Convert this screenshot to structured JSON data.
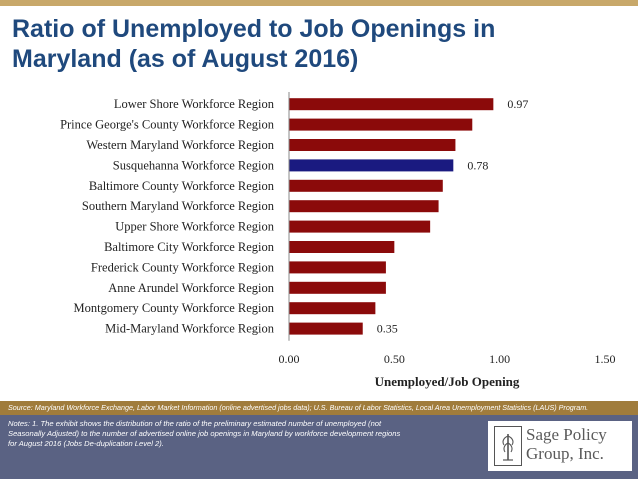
{
  "title": "Ratio of Unemployed to Job Openings in Maryland (as of August 2016)",
  "colors": {
    "bar_default": "#8b0a0a",
    "bar_highlight": "#1a1a80",
    "source_bar": "#a07c3c",
    "footer": "#5a6283",
    "title": "#1f497d"
  },
  "chart_data": {
    "type": "bar",
    "orientation": "horizontal",
    "categories": [
      "Lower Shore Workforce Region",
      "Prince George's County Workforce Region",
      "Western Maryland Workforce Region",
      "Susquehanna Workforce Region",
      "Baltimore County Workforce Region",
      "Southern Maryland Workforce Region",
      "Upper Shore Workforce Region",
      "Baltimore City Workforce Region",
      "Frederick County Workforce Region",
      "Anne Arundel Workforce Region",
      "Montgomery County Workforce Region",
      "Mid-Maryland Workforce Region"
    ],
    "values": [
      0.97,
      0.87,
      0.79,
      0.78,
      0.73,
      0.71,
      0.67,
      0.5,
      0.46,
      0.46,
      0.41,
      0.35
    ],
    "highlight_index": 3,
    "data_labels": [
      {
        "index": 0,
        "text": "0.97"
      },
      {
        "index": 3,
        "text": "0.78"
      },
      {
        "index": 11,
        "text": "0.35"
      }
    ],
    "xlabel": "Unemployed/Job Opening",
    "xlim": [
      0,
      1.5
    ],
    "xticks": [
      0,
      0.5,
      1.0,
      1.5
    ],
    "xtick_labels": [
      "0.00",
      "0.50",
      "1.00",
      "1.50"
    ],
    "grid": false,
    "legend": "none"
  },
  "source": "Source: Maryland Workforce Exchange, Labor Market Information (online advertised jobs data); U.S. Bureau of Labor Statistics, Local Area Unemployment Statistics (LAUS) Program.",
  "notes": [
    "Notes: 1. The exhibit shows the distribution of the ratio of the preliminary estimated number of unemployed (not",
    "Seasonally Adjusted) to the number of advertised online job openings in Maryland by workforce development regions",
    "for August 2016 (Jobs De-duplication Level 2)."
  ],
  "logo": {
    "line1": "Sage Policy",
    "line2": "Group, Inc."
  }
}
